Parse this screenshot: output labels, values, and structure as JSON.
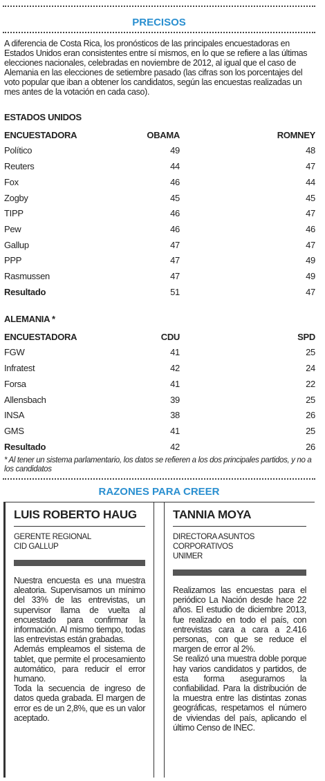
{
  "header": {
    "title": "PRECISOS",
    "intro": "A diferencia de Costa Rica, los pronósticos de las principales encuestadoras en Estados Unidos eran consistentes entre sí mismos, en lo que se refiere a las últimas elecciones nacionales, celebradas en noviembre de 2012, al igual que el caso de Alemania en las elecciones de setiembre pasado (las cifras son los porcentajes del voto popular que iban a obtener los candidatos, según las encuestas realizadas un mes antes de la votación en cada caso)."
  },
  "tables": [
    {
      "caption": "ESTADOS UNIDOS",
      "columns": [
        "ENCUESTADORA",
        "OBAMA",
        "ROMNEY"
      ],
      "rows": [
        [
          "Político",
          49,
          48
        ],
        [
          "Reuters",
          44,
          47
        ],
        [
          "Fox",
          46,
          44
        ],
        [
          "Zogby",
          45,
          45
        ],
        [
          "TIPP",
          46,
          47
        ],
        [
          "Pew",
          46,
          46
        ],
        [
          "Gallup",
          47,
          47
        ],
        [
          "PPP",
          47,
          49
        ],
        [
          "Rasmussen",
          47,
          49
        ],
        [
          "Resultado",
          51,
          47
        ]
      ]
    },
    {
      "caption": "ALEMANIA *",
      "columns": [
        "ENCUESTADORA",
        "CDU",
        "SPD"
      ],
      "rows": [
        [
          "FGW",
          41,
          25
        ],
        [
          "Infratest",
          42,
          24
        ],
        [
          "Forsa",
          41,
          22
        ],
        [
          "Allensbach",
          39,
          25
        ],
        [
          "INSA",
          38,
          26
        ],
        [
          "GMS",
          41,
          25
        ],
        [
          "Resultado",
          42,
          26
        ]
      ]
    }
  ],
  "footnote": "* Al tener un sistema parlamentario, los datos se refieren a los dos principales partidos, y no a los candidatos",
  "section": {
    "title": "RAZONES PARA CREER",
    "columns": [
      {
        "name": "LUIS ROBERTO HAUG",
        "role": [
          "GERENTE REGIONAL",
          "CID GALLUP"
        ],
        "paragraphs": [
          "Nuestra encuesta es una muestra aleatoria. Supervisamos un mínimo del 33% de las entrevistas, un supervisor llama de vuelta al encuestado para confirmar la información. Al mismo tiempo, todas las entrevistas están grabadas.",
          "Además empleamos el sistema de tablet, que permite el procesamiento automático, para reducir el error humano.",
          "Toda la secuencia de ingreso de datos queda grabada. El margen de error es de un 2,8%, que es un valor aceptado."
        ]
      },
      {
        "name": "TANNIA MOYA",
        "role": [
          "DIRECTORA ASUNTOS CORPORATIVOS",
          "UNIMER"
        ],
        "paragraphs": [
          "Realizamos las encuestas para el periódico La Nación desde hace 22 años. El estudio de diciembre 2013, fue realizado en todo el país, con entrevistas cara a cara a 2.416 personas, con que se reduce el margen de error al 2%.",
          "Se realizó una muestra doble porque hay varios candidatos y partidos, de esta forma aseguramos la confiabilidad. Para la distribución de la muestra entre las distintas zonas geográficas, respetamos el número de viviendas del país, aplicando el último Censo de INEC."
        ]
      }
    ]
  }
}
